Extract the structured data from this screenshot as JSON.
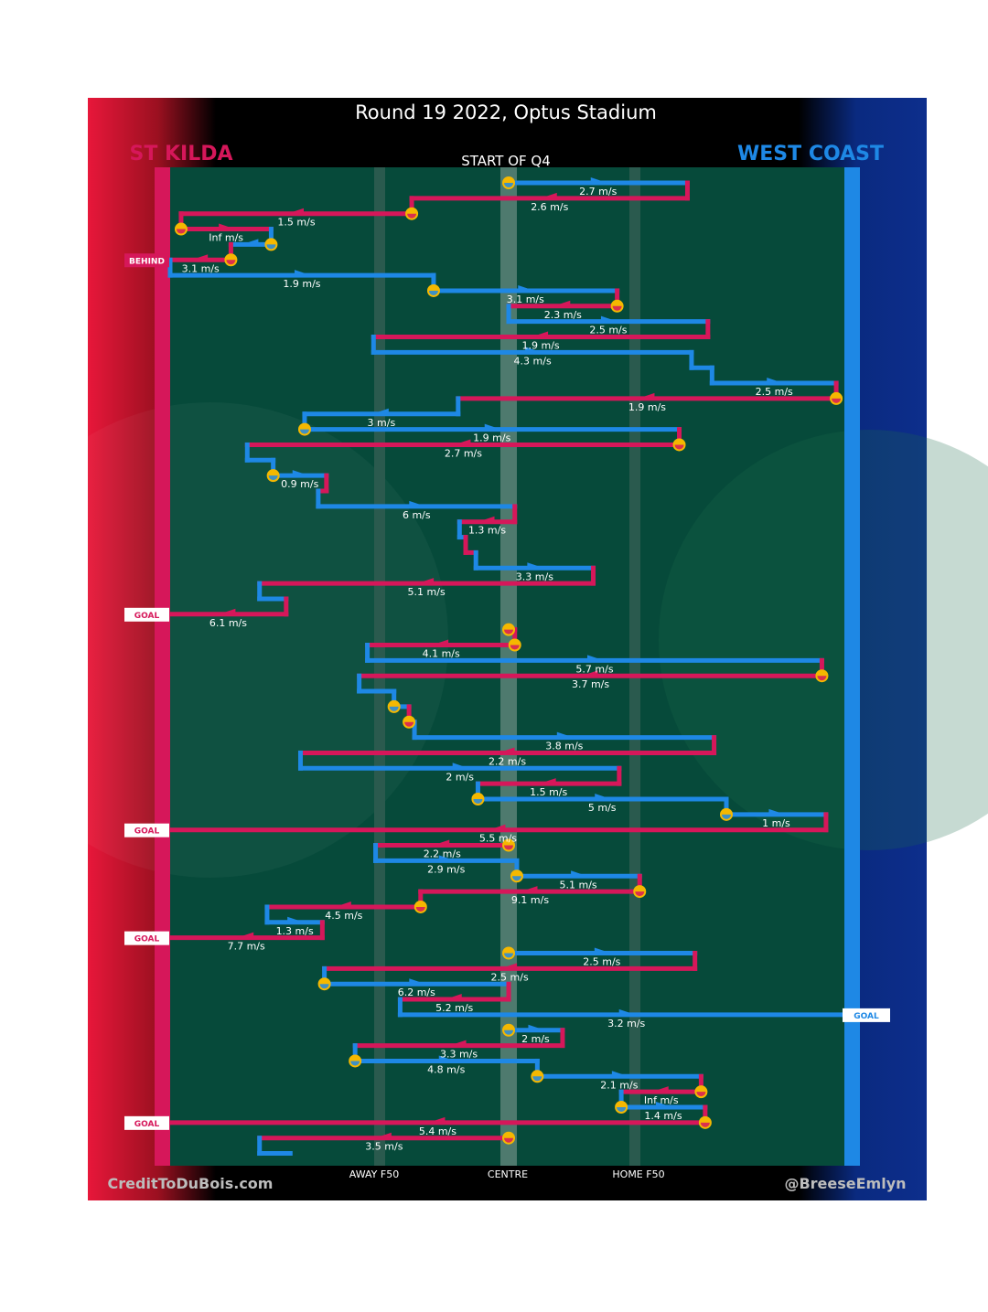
{
  "title": "Round 19 2022, Optus Stadium",
  "subtitle": "START OF Q4",
  "teams": {
    "left": {
      "name": "ST KILDA",
      "color": "#d6175a"
    },
    "right": {
      "name": "WEST COAST",
      "color": "#1e88e5"
    }
  },
  "credits": {
    "left": "CreditToDuBois.com",
    "right": "@BreeseEmlyn"
  },
  "chart_data": {
    "type": "line",
    "title": "Round 19 2022, Optus Stadium",
    "xlabel": "",
    "ylabel": "",
    "x_axis": "ground position (0 = St Kilda goal line, 100 = West Coast goal line)",
    "xlim": [
      0,
      100
    ],
    "x_ticks": [
      {
        "x": 30,
        "label": "AWAY F50"
      },
      {
        "x": 49.6,
        "label": "CENTRE"
      },
      {
        "x": 69.4,
        "label": "HOME F50"
      }
    ],
    "events": [
      {
        "x": 0,
        "label": "BEHIND",
        "side": "left",
        "row": 5
      },
      {
        "x": 0,
        "label": "GOAL",
        "side": "left",
        "row": 28
      },
      {
        "x": 0,
        "label": "GOAL",
        "side": "left",
        "row": 42
      },
      {
        "x": 0,
        "label": "GOAL",
        "side": "left",
        "row": 49
      },
      {
        "x": 100,
        "label": "GOAL",
        "side": "right",
        "row": 54
      },
      {
        "x": 0,
        "label": "GOAL",
        "side": "left",
        "row": 61
      }
    ],
    "series": [
      {
        "name": "ST KILDA",
        "color": "#d6175a"
      },
      {
        "name": "WEST COAST",
        "color": "#1e88e5"
      }
    ],
    "chains": [
      {
        "team": "WC",
        "row": 0,
        "x0": 49.6,
        "x1": 75.8,
        "speed": "2.7 m/s",
        "start": "stoppage"
      },
      {
        "team": "SK",
        "row": 1,
        "x0": 75.8,
        "x1": 35.4,
        "speed": "2.6 m/s"
      },
      {
        "team": "SK",
        "row": 2,
        "x0": 35.4,
        "x1": 1.6,
        "speed": "1.5 m/s",
        "start": "stoppage"
      },
      {
        "team": "SK",
        "row": 3,
        "x0": 1.6,
        "x1": 14.8,
        "speed": "Inf m/s",
        "start": "stoppage"
      },
      {
        "team": "WC",
        "row": 4,
        "x0": 14.8,
        "x1": 8.9,
        "speed": "",
        "start": "stoppage"
      },
      {
        "team": "SK",
        "row": 5,
        "x0": 8.9,
        "x1": 0,
        "speed": "3.1 m/s",
        "start": "stoppage"
      },
      {
        "team": "WC",
        "row": 6,
        "x0": 0,
        "x1": 38.6,
        "speed": "1.9 m/s"
      },
      {
        "team": "WC",
        "row": 7,
        "x0": 38.6,
        "x1": 65.5,
        "speed": "3.1 m/s",
        "start": "stoppage"
      },
      {
        "team": "SK",
        "row": 8,
        "x0": 65.5,
        "x1": 49.6,
        "speed": "2.3 m/s",
        "start": "stoppage"
      },
      {
        "team": "WC",
        "row": 9,
        "x0": 49.6,
        "x1": 78.8,
        "speed": "2.5 m/s"
      },
      {
        "team": "SK",
        "row": 10,
        "x0": 78.8,
        "x1": 29.8,
        "speed": "1.9 m/s"
      },
      {
        "team": "WC",
        "row": 11,
        "x0": 29.8,
        "x1": 76.4,
        "speed": "4.3 m/s"
      },
      {
        "team": "WC",
        "row": 12,
        "x0": 76.4,
        "x1": 79.4,
        "speed": ""
      },
      {
        "team": "WC",
        "row": 13,
        "x0": 79.4,
        "x1": 97.6,
        "speed": "2.5 m/s"
      },
      {
        "team": "SK",
        "row": 14,
        "x0": 97.6,
        "x1": 42.2,
        "speed": "1.9 m/s",
        "start": "stoppage"
      },
      {
        "team": "WC",
        "row": 15,
        "x0": 42.2,
        "x1": 19.7,
        "speed": "3 m/s"
      },
      {
        "team": "WC",
        "row": 16,
        "x0": 19.7,
        "x1": 74.6,
        "speed": "1.9 m/s",
        "start": "stoppage"
      },
      {
        "team": "SK",
        "row": 17,
        "x0": 74.6,
        "x1": 11.3,
        "speed": "2.7 m/s",
        "start": "stoppage"
      },
      {
        "team": "WC",
        "row": 18,
        "x0": 11.3,
        "x1": 15.1,
        "speed": ""
      },
      {
        "team": "WC",
        "row": 19,
        "x0": 15.1,
        "x1": 22.9,
        "speed": "0.9 m/s",
        "start": "stoppage"
      },
      {
        "team": "SK",
        "row": 20,
        "x0": 22.9,
        "x1": 21.7,
        "speed": ""
      },
      {
        "team": "WC",
        "row": 21,
        "x0": 21.7,
        "x1": 50.5,
        "speed": "6 m/s"
      },
      {
        "team": "SK",
        "row": 22,
        "x0": 50.5,
        "x1": 42.4,
        "speed": "1.3 m/s"
      },
      {
        "team": "WC",
        "row": 23,
        "x0": 42.4,
        "x1": 43.3,
        "speed": ""
      },
      {
        "team": "SK",
        "row": 24,
        "x0": 43.3,
        "x1": 44.8,
        "speed": ""
      },
      {
        "team": "WC",
        "row": 25,
        "x0": 44.8,
        "x1": 62.0,
        "speed": "3.3 m/s"
      },
      {
        "team": "SK",
        "row": 26,
        "x0": 62.0,
        "x1": 13.1,
        "speed": "5.1 m/s"
      },
      {
        "team": "WC",
        "row": 27,
        "x0": 13.1,
        "x1": 17.0,
        "speed": ""
      },
      {
        "team": "SK",
        "row": 28,
        "x0": 17.0,
        "x1": 0,
        "speed": "6.1 m/s"
      },
      {
        "team": "SK",
        "row": 29,
        "x0": 49.6,
        "x1": 50.5,
        "speed": "",
        "start": "stoppage"
      },
      {
        "team": "SK",
        "row": 30,
        "x0": 50.5,
        "x1": 28.9,
        "speed": "4.1 m/s",
        "start": "stoppage"
      },
      {
        "team": "WC",
        "row": 31,
        "x0": 28.9,
        "x1": 95.5,
        "speed": "5.7 m/s"
      },
      {
        "team": "SK",
        "row": 32,
        "x0": 95.5,
        "x1": 27.7,
        "speed": "3.7 m/s",
        "start": "stoppage"
      },
      {
        "team": "WC",
        "row": 33,
        "x0": 27.7,
        "x1": 32.8,
        "speed": ""
      },
      {
        "team": "WC",
        "row": 34,
        "x0": 32.8,
        "x1": 35.0,
        "speed": "",
        "start": "stoppage"
      },
      {
        "team": "SK",
        "row": 35,
        "x0": 35.0,
        "x1": 35.8,
        "speed": "",
        "start": "stoppage"
      },
      {
        "team": "WC",
        "row": 36,
        "x0": 35.8,
        "x1": 79.7,
        "speed": "3.8 m/s"
      },
      {
        "team": "SK",
        "row": 37,
        "x0": 79.7,
        "x1": 19.1,
        "speed": "2.2 m/s"
      },
      {
        "team": "WC",
        "row": 38,
        "x0": 19.1,
        "x1": 65.8,
        "speed": "2 m/s"
      },
      {
        "team": "SK",
        "row": 39,
        "x0": 65.8,
        "x1": 45.1,
        "speed": "1.5 m/s"
      },
      {
        "team": "WC",
        "row": 40,
        "x0": 45.1,
        "x1": 81.5,
        "speed": "5 m/s",
        "start": "stoppage"
      },
      {
        "team": "WC",
        "row": 41,
        "x0": 81.5,
        "x1": 96.1,
        "speed": "1 m/s",
        "start": "stoppage"
      },
      {
        "team": "SK",
        "row": 42,
        "x0": 96.1,
        "x1": 0,
        "speed": "5.5 m/s"
      },
      {
        "team": "SK",
        "row": 43,
        "x0": 49.6,
        "x1": 30.1,
        "speed": "2.2 m/s",
        "start": "stoppage"
      },
      {
        "team": "WC",
        "row": 44,
        "x0": 30.1,
        "x1": 50.8,
        "speed": "2.9 m/s"
      },
      {
        "team": "WC",
        "row": 45,
        "x0": 50.8,
        "x1": 68.8,
        "speed": "5.1 m/s",
        "start": "stoppage"
      },
      {
        "team": "SK",
        "row": 46,
        "x0": 68.8,
        "x1": 36.7,
        "speed": "9.1 m/s",
        "start": "stoppage"
      },
      {
        "team": "SK",
        "row": 47,
        "x0": 36.7,
        "x1": 14.2,
        "speed": "4.5 m/s",
        "start": "stoppage"
      },
      {
        "team": "WC",
        "row": 48,
        "x0": 14.2,
        "x1": 22.3,
        "speed": "1.3 m/s"
      },
      {
        "team": "SK",
        "row": 49,
        "x0": 22.3,
        "x1": 0,
        "speed": "7.7 m/s"
      },
      {
        "team": "WC",
        "row": 50,
        "x0": 49.6,
        "x1": 76.9,
        "speed": "2.5 m/s",
        "start": "stoppage"
      },
      {
        "team": "SK",
        "row": 51,
        "x0": 76.9,
        "x1": 22.6,
        "speed": "2.5 m/s"
      },
      {
        "team": "WC",
        "row": 52,
        "x0": 22.6,
        "x1": 49.6,
        "speed": "6.2 m/s",
        "start": "stoppage"
      },
      {
        "team": "SK",
        "row": 53,
        "x0": 49.6,
        "x1": 33.7,
        "speed": "5.2 m/s"
      },
      {
        "team": "WC",
        "row": 54,
        "x0": 33.7,
        "x1": 100,
        "speed": "3.2 m/s"
      },
      {
        "team": "WC",
        "row": 55,
        "x0": 49.6,
        "x1": 57.5,
        "speed": "2 m/s",
        "start": "stoppage"
      },
      {
        "team": "SK",
        "row": 56,
        "x0": 57.5,
        "x1": 27.1,
        "speed": "3.3 m/s"
      },
      {
        "team": "WC",
        "row": 57,
        "x0": 27.1,
        "x1": 53.8,
        "speed": "4.8 m/s",
        "start": "stoppage"
      },
      {
        "team": "WC",
        "row": 58,
        "x0": 53.8,
        "x1": 77.8,
        "speed": "2.1 m/s",
        "start": "stoppage"
      },
      {
        "team": "SK",
        "row": 59,
        "x0": 77.8,
        "x1": 66.1,
        "speed": "Inf m/s",
        "start": "stoppage"
      },
      {
        "team": "WC",
        "row": 60,
        "x0": 66.1,
        "x1": 78.4,
        "speed": "1.4 m/s",
        "start": "stoppage"
      },
      {
        "team": "SK",
        "row": 61,
        "x0": 78.4,
        "x1": 0,
        "speed": "5.4 m/s",
        "start": "stoppage"
      },
      {
        "team": "SK",
        "row": 62,
        "x0": 49.6,
        "x1": 13.1,
        "speed": "3.5 m/s",
        "start": "stoppage"
      },
      {
        "team": "WC",
        "row": 63,
        "x0": 13.1,
        "x1": 17.6,
        "speed": ""
      }
    ]
  }
}
